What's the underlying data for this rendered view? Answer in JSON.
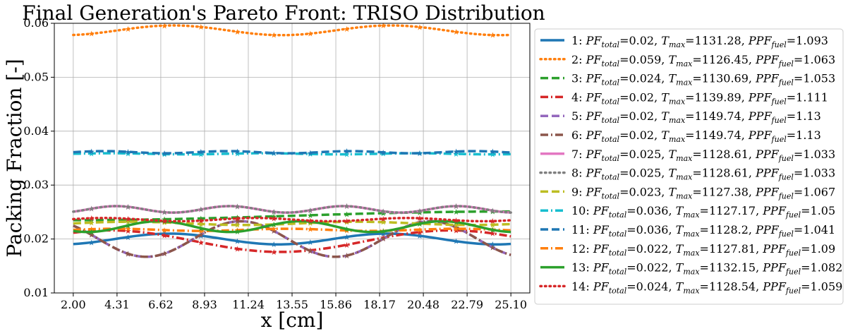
{
  "chart_data": {
    "type": "line",
    "title": "Final Generation's Pareto Front: TRISO Distribution",
    "xlabel": "x [cm]",
    "ylabel": "Packing Fraction [-]",
    "xlim": [
      1.0,
      26.1
    ],
    "ylim": [
      0.01,
      0.06
    ],
    "xticks": [
      "2.00",
      "4.31",
      "6.62",
      "8.93",
      "11.24",
      "13.55",
      "15.86",
      "18.17",
      "20.48",
      "22.79",
      "25.10"
    ],
    "yticks": [
      "0.01",
      "0.02",
      "0.03",
      "0.04",
      "0.05",
      "0.06"
    ],
    "grid": true,
    "legend_position": "outside-right",
    "series": [
      {
        "name": "1",
        "pf_total": "0.02",
        "t_max": "1131.28",
        "ppf_fuel": "1.093",
        "color": "#1f77b4",
        "dash": "solid",
        "mean": 0.02,
        "amp": 0.001,
        "period": 11.5,
        "phase": -1.2
      },
      {
        "name": "2",
        "pf_total": "0.059",
        "t_max": "1126.45",
        "ppf_fuel": "1.063",
        "color": "#ff7f0e",
        "dash": "dot",
        "mean": 0.0587,
        "amp": 0.0009,
        "period": 11.5,
        "phase": -1.3
      },
      {
        "name": "3",
        "pf_total": "0.024",
        "t_max": "1130.69",
        "ppf_fuel": "1.053",
        "color": "#2ca02c",
        "dash": "dash",
        "mean": 0.0243,
        "amp": 0.0008,
        "period": 46.0,
        "phase": -1.57
      },
      {
        "name": "4",
        "pf_total": "0.02",
        "t_max": "1139.89",
        "ppf_fuel": "1.111",
        "color": "#d62728",
        "dash": "dashdot",
        "mean": 0.0196,
        "amp": 0.002,
        "period": 18.0,
        "phase": 0.9
      },
      {
        "name": "5",
        "pf_total": "0.02",
        "t_max": "1149.74",
        "ppf_fuel": "1.13",
        "color": "#9467bd",
        "dash": "dash",
        "mean": 0.02,
        "amp": 0.0033,
        "period": 10.0,
        "phase": 2.3
      },
      {
        "name": "6",
        "pf_total": "0.02",
        "t_max": "1149.74",
        "ppf_fuel": "1.13",
        "color": "#8c564b",
        "dash": "dashdot",
        "mean": 0.02,
        "amp": 0.0033,
        "period": 10.0,
        "phase": 2.3
      },
      {
        "name": "7",
        "pf_total": "0.025",
        "t_max": "1128.61",
        "ppf_fuel": "1.033",
        "color": "#e377c2",
        "dash": "solid",
        "mean": 0.0255,
        "amp": 0.0006,
        "period": 6.0,
        "phase": -0.8
      },
      {
        "name": "8",
        "pf_total": "0.025",
        "t_max": "1128.61",
        "ppf_fuel": "1.033",
        "color": "#7f7f7f",
        "dash": "dot",
        "mean": 0.0255,
        "amp": 0.0006,
        "period": 6.0,
        "phase": -0.8
      },
      {
        "name": "9",
        "pf_total": "0.023",
        "t_max": "1127.38",
        "ppf_fuel": "1.067",
        "color": "#bcbd22",
        "dash": "dash",
        "mean": 0.0229,
        "amp": 0.0003,
        "period": 12.0,
        "phase": 0.0
      },
      {
        "name": "10",
        "pf_total": "0.036",
        "t_max": "1127.17",
        "ppf_fuel": "1.05",
        "color": "#17becf",
        "dash": "dashdot",
        "mean": 0.0358,
        "amp": 0.0001,
        "period": 8.0,
        "phase": 0.0
      },
      {
        "name": "11",
        "pf_total": "0.036",
        "t_max": "1128.2",
        "ppf_fuel": "1.041",
        "color": "#1f77b4",
        "dash": "dash",
        "mean": 0.0361,
        "amp": 0.0002,
        "period": 6.5,
        "phase": 0.0
      },
      {
        "name": "12",
        "pf_total": "0.022",
        "t_max": "1127.81",
        "ppf_fuel": "1.09",
        "color": "#ff7f0e",
        "dash": "dashdot",
        "mean": 0.0217,
        "amp": 0.0002,
        "period": 9.0,
        "phase": 0.0
      },
      {
        "name": "13",
        "pf_total": "0.022",
        "t_max": "1132.15",
        "ppf_fuel": "1.082",
        "color": "#2ca02c",
        "dash": "solid",
        "mean": 0.0223,
        "amp": 0.001,
        "period": 7.5,
        "phase": -2.2
      },
      {
        "name": "14",
        "pf_total": "0.024",
        "t_max": "1128.54",
        "ppf_fuel": "1.059",
        "color": "#d62728",
        "dash": "dot",
        "mean": 0.0236,
        "amp": 0.0003,
        "period": 8.0,
        "phase": 0.3
      }
    ]
  }
}
